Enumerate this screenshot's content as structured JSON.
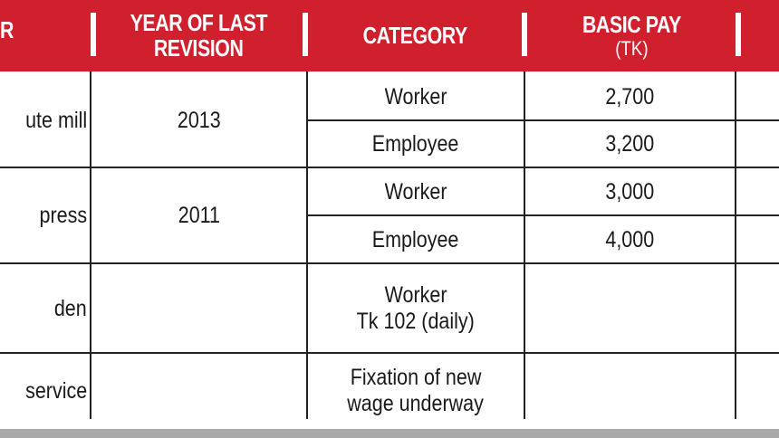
{
  "table": {
    "headers": {
      "first_cut": "R",
      "year": [
        "YEAR OF LAST",
        "REVISION"
      ],
      "category": "CATEGORY",
      "basic_pay": "BASIC PAY",
      "basic_pay_unit": "(TK)"
    },
    "rows": [
      {
        "sector": "ute mill",
        "year": "2013",
        "categories": [
          "Worker",
          "Employee"
        ],
        "pays": [
          "2,700",
          "3,200"
        ]
      },
      {
        "sector": "press",
        "year": "2011",
        "categories": [
          "Worker",
          "Employee"
        ],
        "pays": [
          "3,000",
          "4,000"
        ]
      },
      {
        "sector": "den",
        "year": "",
        "categories": [
          "Worker",
          "Tk 102 (daily)"
        ],
        "pays": [
          ""
        ]
      },
      {
        "sector": "service",
        "year": "",
        "categories": [
          "Fixation of new",
          "wage underway"
        ],
        "pays": [
          ""
        ]
      }
    ]
  },
  "colors": {
    "header_bg": "#d0202e",
    "header_text": "#ffffff",
    "footer_bar": "#a9a9a9"
  }
}
